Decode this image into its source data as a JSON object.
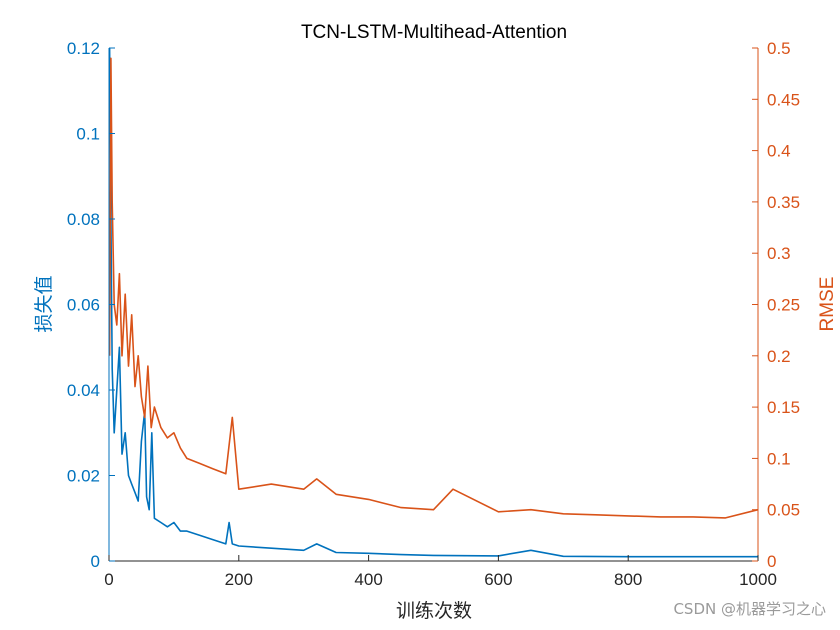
{
  "chart_data": {
    "type": "line",
    "title": "TCN-LSTM-Multihead-Attention",
    "xlabel": "训练次数",
    "ylabel_left": "损失值",
    "ylabel_right": "RMSE",
    "xlim": [
      0,
      1000
    ],
    "ylim_left": [
      0,
      0.12
    ],
    "ylim_right": [
      0,
      0.5
    ],
    "x_ticks": [
      "0",
      "200",
      "400",
      "600",
      "800",
      "1000"
    ],
    "y_left_ticks": [
      "0",
      "0.02",
      "0.04",
      "0.06",
      "0.08",
      "0.1",
      "0.12"
    ],
    "y_right_ticks": [
      "0",
      "0.05",
      "0.1",
      "0.15",
      "0.2",
      "0.25",
      "0.3",
      "0.35",
      "0.4",
      "0.45",
      "0.5"
    ],
    "grid": false,
    "colors": {
      "left": "#0072BD",
      "right": "#D95319"
    },
    "series": [
      {
        "axis": "left",
        "color": "#0072BD",
        "points": [
          [
            1,
            0.12
          ],
          [
            3,
            0.08
          ],
          [
            5,
            0.045
          ],
          [
            8,
            0.03
          ],
          [
            12,
            0.04
          ],
          [
            16,
            0.05
          ],
          [
            20,
            0.025
          ],
          [
            25,
            0.03
          ],
          [
            30,
            0.02
          ],
          [
            35,
            0.018
          ],
          [
            40,
            0.016
          ],
          [
            45,
            0.014
          ],
          [
            50,
            0.028
          ],
          [
            55,
            0.035
          ],
          [
            58,
            0.015
          ],
          [
            62,
            0.012
          ],
          [
            66,
            0.03
          ],
          [
            70,
            0.01
          ],
          [
            80,
            0.009
          ],
          [
            90,
            0.008
          ],
          [
            100,
            0.009
          ],
          [
            110,
            0.007
          ],
          [
            120,
            0.007
          ],
          [
            140,
            0.006
          ],
          [
            160,
            0.005
          ],
          [
            180,
            0.004
          ],
          [
            185,
            0.009
          ],
          [
            190,
            0.004
          ],
          [
            200,
            0.0035
          ],
          [
            250,
            0.003
          ],
          [
            300,
            0.0025
          ],
          [
            320,
            0.004
          ],
          [
            350,
            0.002
          ],
          [
            400,
            0.0018
          ],
          [
            450,
            0.0015
          ],
          [
            500,
            0.0013
          ],
          [
            600,
            0.0012
          ],
          [
            650,
            0.0025
          ],
          [
            700,
            0.0011
          ],
          [
            800,
            0.001
          ],
          [
            900,
            0.001
          ],
          [
            1000,
            0.001
          ]
        ]
      },
      {
        "axis": "right",
        "color": "#D95319",
        "points": [
          [
            1,
            0.2
          ],
          [
            3,
            0.49
          ],
          [
            5,
            0.35
          ],
          [
            8,
            0.25
          ],
          [
            12,
            0.23
          ],
          [
            16,
            0.28
          ],
          [
            20,
            0.2
          ],
          [
            25,
            0.26
          ],
          [
            30,
            0.19
          ],
          [
            35,
            0.24
          ],
          [
            40,
            0.17
          ],
          [
            45,
            0.2
          ],
          [
            50,
            0.16
          ],
          [
            55,
            0.14
          ],
          [
            60,
            0.19
          ],
          [
            65,
            0.13
          ],
          [
            70,
            0.15
          ],
          [
            80,
            0.13
          ],
          [
            90,
            0.12
          ],
          [
            100,
            0.125
          ],
          [
            110,
            0.11
          ],
          [
            120,
            0.1
          ],
          [
            140,
            0.095
          ],
          [
            160,
            0.09
          ],
          [
            180,
            0.085
          ],
          [
            190,
            0.14
          ],
          [
            200,
            0.07
          ],
          [
            250,
            0.075
          ],
          [
            300,
            0.07
          ],
          [
            320,
            0.08
          ],
          [
            350,
            0.065
          ],
          [
            400,
            0.06
          ],
          [
            450,
            0.052
          ],
          [
            500,
            0.05
          ],
          [
            530,
            0.07
          ],
          [
            600,
            0.048
          ],
          [
            650,
            0.05
          ],
          [
            700,
            0.046
          ],
          [
            750,
            0.045
          ],
          [
            800,
            0.044
          ],
          [
            850,
            0.043
          ],
          [
            900,
            0.043
          ],
          [
            950,
            0.042
          ],
          [
            1000,
            0.05
          ]
        ]
      }
    ]
  },
  "watermark": "CSDN @机器学习之心"
}
